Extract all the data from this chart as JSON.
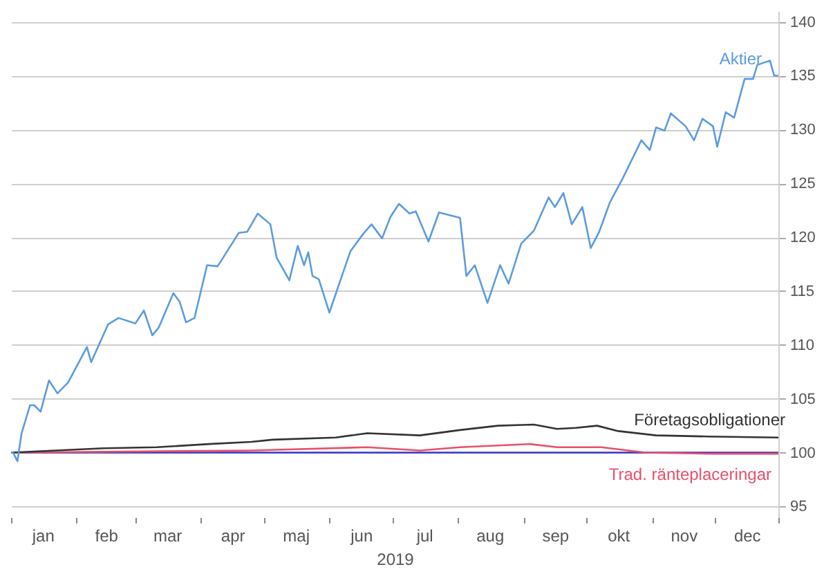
{
  "chart_data": {
    "type": "line",
    "xlabel": "2019",
    "xlim": [
      "2019-01-01",
      "2019-12-31"
    ],
    "xticks": [
      {
        "value": "2019-01-01",
        "label": null
      },
      {
        "value": "2019-02-01",
        "label": null
      },
      {
        "value": "2019-03-01",
        "label": null
      },
      {
        "value": "2019-04-01",
        "label": null
      },
      {
        "value": "2019-05-01",
        "label": null
      },
      {
        "value": "2019-06-01",
        "label": null
      },
      {
        "value": "2019-07-01",
        "label": null
      },
      {
        "value": "2019-08-01",
        "label": null
      },
      {
        "value": "2019-09-01",
        "label": null
      },
      {
        "value": "2019-10-01",
        "label": null
      },
      {
        "value": "2019-11-01",
        "label": null
      },
      {
        "value": "2019-12-01",
        "label": null
      },
      {
        "value": "2019-12-31",
        "label": null
      },
      {
        "value": "2019-01-16",
        "label": "jan"
      },
      {
        "value": "2019-02-15",
        "label": "feb"
      },
      {
        "value": "2019-03-16",
        "label": "mar"
      },
      {
        "value": "2019-04-16",
        "label": "apr"
      },
      {
        "value": "2019-05-16",
        "label": "maj"
      },
      {
        "value": "2019-06-16",
        "label": "jun"
      },
      {
        "value": "2019-07-16",
        "label": "jul"
      },
      {
        "value": "2019-08-16",
        "label": "aug"
      },
      {
        "value": "2019-09-16",
        "label": "sep"
      },
      {
        "value": "2019-10-16",
        "label": "okt"
      },
      {
        "value": "2019-11-16",
        "label": "nov"
      },
      {
        "value": "2019-12-16",
        "label": "dec"
      }
    ],
    "ylim": [
      94,
      141
    ],
    "yticks": [
      95,
      100,
      105,
      110,
      115,
      120,
      125,
      130,
      135,
      140
    ],
    "grid": "y",
    "marker": "none",
    "line_style": "solid",
    "series": [
      {
        "name": "Aktier",
        "color": "#5b9be0",
        "x": [
          "2019-01-01",
          "2019-01-02",
          "2019-01-04",
          "2019-01-06",
          "2019-01-10",
          "2019-01-12",
          "2019-01-15",
          "2019-01-19",
          "2019-01-23",
          "2019-01-28",
          "2019-02-06",
          "2019-02-08",
          "2019-02-16",
          "2019-02-21",
          "2019-03-01",
          "2019-03-05",
          "2019-03-09",
          "2019-03-12",
          "2019-03-19",
          "2019-03-22",
          "2019-03-25",
          "2019-03-29",
          "2019-04-04",
          "2019-04-09",
          "2019-04-19",
          "2019-04-23",
          "2019-04-28",
          "2019-05-04",
          "2019-05-07",
          "2019-05-13",
          "2019-05-17",
          "2019-05-20",
          "2019-05-22",
          "2019-05-24",
          "2019-05-27",
          "2019-06-01",
          "2019-06-05",
          "2019-06-11",
          "2019-06-17",
          "2019-06-21",
          "2019-06-26",
          "2019-06-30",
          "2019-07-04",
          "2019-07-09",
          "2019-07-12",
          "2019-07-18",
          "2019-07-23",
          "2019-08-02",
          "2019-08-05",
          "2019-08-09",
          "2019-08-15",
          "2019-08-21",
          "2019-08-25",
          "2019-08-31",
          "2019-09-06",
          "2019-09-13",
          "2019-09-16",
          "2019-09-20",
          "2019-09-24",
          "2019-09-29",
          "2019-10-03",
          "2019-10-07",
          "2019-10-12",
          "2019-10-18",
          "2019-10-22",
          "2019-10-27",
          "2019-10-31",
          "2019-11-03",
          "2019-11-07",
          "2019-11-10",
          "2019-11-17",
          "2019-11-21",
          "2019-11-25",
          "2019-11-30",
          "2019-12-02",
          "2019-12-06",
          "2019-12-10",
          "2019-12-15",
          "2019-12-19",
          "2019-12-21",
          "2019-12-27",
          "2019-12-29",
          "2019-12-31"
        ],
        "values": [
          100,
          100,
          99.2,
          101.8,
          104.4,
          104.4,
          103.8,
          106.7,
          105.5,
          106.5,
          109.8,
          108.4,
          111.9,
          112.5,
          112,
          113.2,
          110.9,
          111.6,
          114.8,
          114,
          112.1,
          112.5,
          117.4,
          117.3,
          120.4,
          120.5,
          122.2,
          121.2,
          118.1,
          116,
          119.2,
          117.4,
          118.6,
          116.4,
          116.1,
          113,
          115.3,
          118.7,
          120.3,
          121.2,
          119.9,
          121.9,
          123.1,
          122.2,
          122.4,
          119.6,
          122.3,
          121.8,
          116.4,
          117.4,
          113.9,
          117.4,
          115.7,
          119.4,
          120.6,
          123.7,
          122.8,
          124.1,
          121.2,
          122.8,
          119,
          120.5,
          123.2,
          125.4,
          127,
          129,
          128.1,
          130.2,
          129.9,
          131.5,
          130.3,
          129,
          131,
          130.3,
          128.4,
          131.6,
          131.1,
          134.7,
          134.7,
          136,
          136.4,
          135,
          135
        ]
      },
      {
        "name": "Företagsobligationer",
        "color": "#333333",
        "x": [
          "2019-01-01",
          "2019-02-14",
          "2019-03-11",
          "2019-04-05",
          "2019-04-25",
          "2019-05-05",
          "2019-06-04",
          "2019-06-19",
          "2019-07-14",
          "2019-08-02",
          "2019-08-20",
          "2019-09-06",
          "2019-09-17",
          "2019-09-26",
          "2019-10-06",
          "2019-10-16",
          "2019-11-03",
          "2019-11-27",
          "2019-12-31"
        ],
        "values": [
          100,
          100.4,
          100.5,
          100.8,
          101,
          101.2,
          101.4,
          101.8,
          101.6,
          102.1,
          102.5,
          102.6,
          102.2,
          102.3,
          102.5,
          102,
          101.6,
          101.5,
          101.4
        ]
      },
      {
        "name": "Trad. ränteplaceringar",
        "color": "#e8506a",
        "x": [
          "2019-01-01",
          "2019-04-25",
          "2019-06-19",
          "2019-07-14",
          "2019-08-02",
          "2019-09-04",
          "2019-09-17",
          "2019-10-08",
          "2019-10-29",
          "2019-11-27",
          "2019-12-31"
        ],
        "values": [
          100,
          100.2,
          100.5,
          100.2,
          100.5,
          100.8,
          100.5,
          100.5,
          100,
          99.9,
          99.9
        ]
      },
      {
        "color": "#3535c8",
        "x": [
          "2019-01-01",
          "2019-12-31"
        ],
        "values": [
          100,
          100
        ]
      }
    ]
  }
}
